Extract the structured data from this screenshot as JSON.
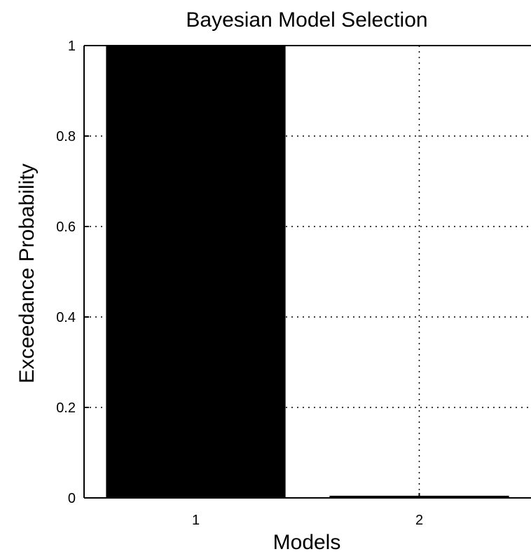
{
  "chart_data": {
    "type": "bar",
    "title": "Bayesian Model Selection",
    "xlabel": "Models",
    "ylabel": "Exceedance Probability",
    "categories": [
      "1",
      "2"
    ],
    "values": [
      1,
      0.004
    ],
    "ylim": [
      0,
      1
    ],
    "y_ticks": [
      "0",
      "0.2",
      "0.4",
      "0.6",
      "0.8",
      "1"
    ],
    "grid": true,
    "bar_color": "#000000"
  }
}
